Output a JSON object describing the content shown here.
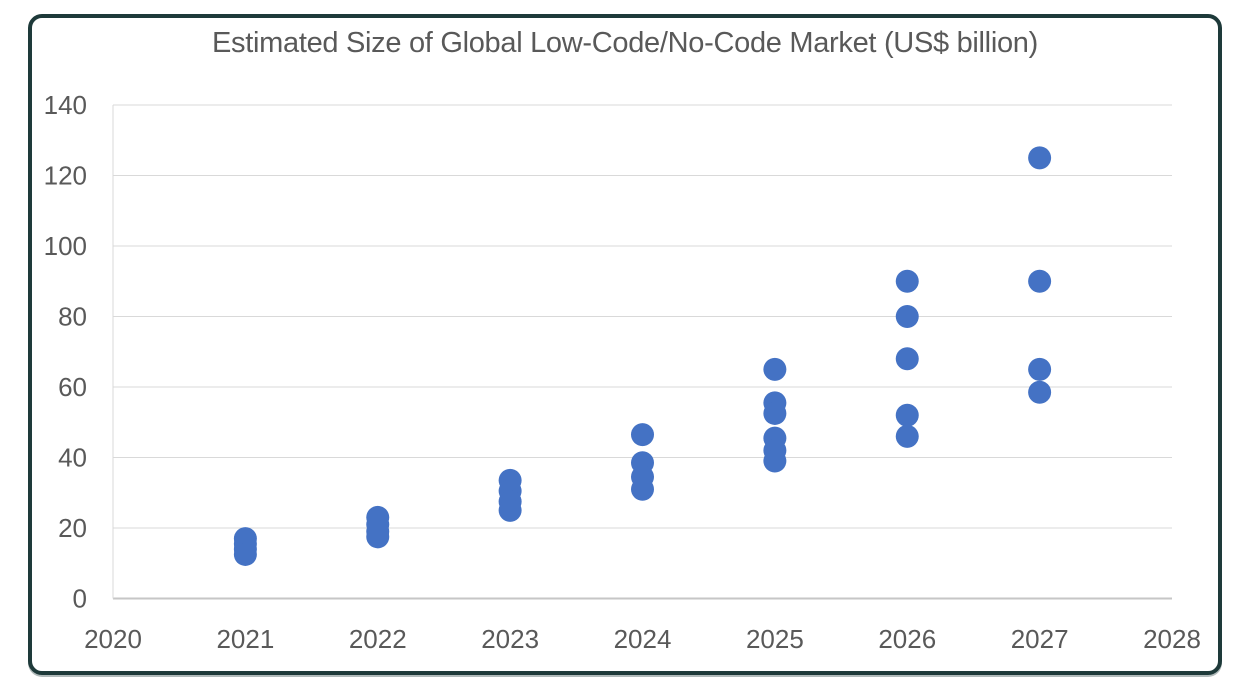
{
  "page": {
    "background": "#ffffff"
  },
  "card": {
    "border_color": "#1e3a3a",
    "background": "#ffffff"
  },
  "chart_data": {
    "type": "scatter",
    "title": "Estimated Size of Global Low-Code/No-Code Market (US$ billion)",
    "xlabel": "",
    "ylabel": "",
    "xlim": [
      2020,
      2028
    ],
    "ylim": [
      0,
      140
    ],
    "x_ticks": [
      2020,
      2021,
      2022,
      2023,
      2024,
      2025,
      2026,
      2027,
      2028
    ],
    "y_ticks": [
      0,
      20,
      40,
      60,
      80,
      100,
      120,
      140
    ],
    "grid": true,
    "legend": false,
    "grid_color": "#d9d9d9",
    "axis_line_color": "#c6c6c6",
    "tick_label_color": "#595959",
    "title_color": "#595959",
    "point_color": "#4472c4",
    "series": [
      {
        "x": 2021,
        "values": [
          17,
          15.5,
          14,
          12.5
        ]
      },
      {
        "x": 2022,
        "values": [
          23,
          21,
          19,
          17.5
        ]
      },
      {
        "x": 2023,
        "values": [
          33.5,
          30.5,
          27.5,
          25
        ]
      },
      {
        "x": 2024,
        "values": [
          46.5,
          38.5,
          34.5,
          31
        ]
      },
      {
        "x": 2025,
        "values": [
          65,
          55.5,
          52.5,
          45.5,
          42,
          39
        ]
      },
      {
        "x": 2026,
        "values": [
          90,
          80,
          68,
          52,
          46
        ]
      },
      {
        "x": 2027,
        "values": [
          125,
          90,
          65,
          58.5
        ]
      }
    ]
  }
}
